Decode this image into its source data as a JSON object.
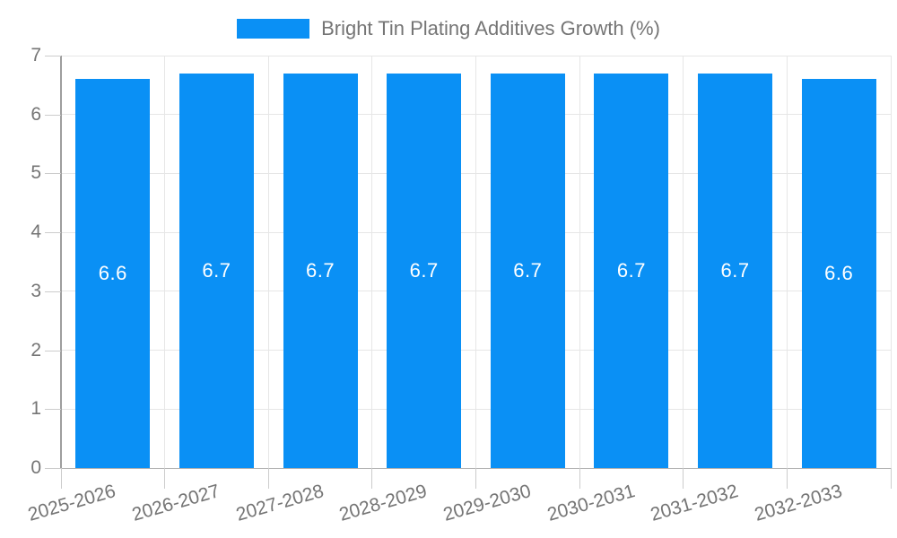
{
  "chart_data": {
    "type": "bar",
    "title": "",
    "legend": {
      "label": "Bright Tin Plating Additives Growth (%)",
      "position": "top-center"
    },
    "categories": [
      "2025-2026",
      "2026-2027",
      "2027-2028",
      "2028-2029",
      "2029-2030",
      "2030-2031",
      "2031-2032",
      "2032-2033"
    ],
    "values": [
      6.6,
      6.7,
      6.7,
      6.7,
      6.7,
      6.7,
      6.7,
      6.6
    ],
    "value_labels": [
      "6.6",
      "6.7",
      "6.7",
      "6.7",
      "6.7",
      "6.7",
      "6.7",
      "6.6"
    ],
    "xlabel": "",
    "ylabel": "",
    "ylim": [
      0,
      7
    ],
    "yticks": [
      0,
      1,
      2,
      3,
      4,
      5,
      6,
      7
    ],
    "grid": true,
    "x_label_rotation_deg": -16,
    "colors": {
      "bar": "#0a90f5",
      "value_label": "#ffffff",
      "axis_text": "#757575",
      "legend_text": "#757575",
      "grid_line": "#e6e6e6",
      "axis_line": "#9e9e9e",
      "baseline": "#b3b3b3",
      "tick": "#cccccc",
      "background": "#ffffff"
    }
  }
}
